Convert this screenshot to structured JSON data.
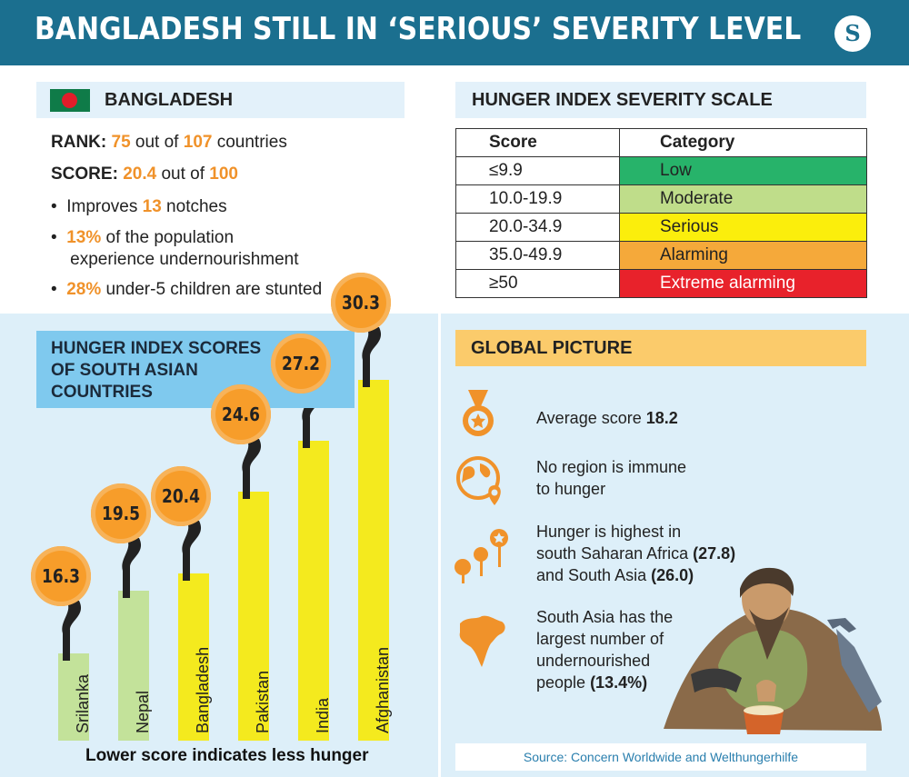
{
  "header": {
    "title": "BANGLADESH STILL IN ‘SERIOUS’ SEVERITY LEVEL",
    "logo": "S"
  },
  "bangladesh": {
    "name": "BANGLADESH",
    "rank_label": "RANK:",
    "rank": "75",
    "rank_mid": " out of ",
    "rank_total": "107",
    "rank_tail": " countries",
    "score_label": "SCORE:",
    "score": "20.4",
    "score_mid": " out of ",
    "score_total": "100",
    "b1_pre": "Improves ",
    "b1_val": "13",
    "b1_post": " notches",
    "b2_val": "13%",
    "b2_post": " of the population",
    "b2_line2": "experience undernourishment",
    "b3_val": "28%",
    "b3_post": " under-5 children are stunted"
  },
  "severity": {
    "title": "HUNGER INDEX SEVERITY SCALE",
    "col_score": "Score",
    "col_category": "Category",
    "rows": [
      {
        "score": "≤9.9",
        "category": "Low",
        "color": "#27b36a",
        "text_color": "#222"
      },
      {
        "score": "10.0-19.9",
        "category": "Moderate",
        "color": "#bfdd8a",
        "text_color": "#222"
      },
      {
        "score": "20.0-34.9",
        "category": "Serious",
        "color": "#fbee0c",
        "text_color": "#222"
      },
      {
        "score": "35.0-49.9",
        "category": "Alarming",
        "color": "#f5a93a",
        "text_color": "#222"
      },
      {
        "score": "≥50",
        "category": "Extreme alarming",
        "color": "#e8222b",
        "text_color": "#ffffff"
      }
    ]
  },
  "south_asia": {
    "title_line1": "HUNGER INDEX SCORES",
    "title_line2": "OF SOUTH ASIAN",
    "title_line3": "COUNTRIES",
    "footnote": "Lower score indicates less hunger"
  },
  "chart_data": {
    "type": "bar",
    "categories": [
      "Srilanka",
      "Nepal",
      "Bangladesh",
      "Pakistan",
      "India",
      "Afghanistan"
    ],
    "values": [
      16.3,
      19.5,
      20.4,
      24.6,
      27.2,
      30.3
    ],
    "labels": [
      "16.3",
      "19.5",
      "20.4",
      "24.6",
      "27.2",
      "30.3"
    ],
    "bar_colors": [
      "#c3e29a",
      "#c3e29a",
      "#f4ea1e",
      "#f4ea1e",
      "#f4ea1e",
      "#f4ea1e"
    ],
    "title": "HUNGER INDEX SCORES OF SOUTH ASIAN COUNTRIES",
    "xlabel": "",
    "ylabel": ""
  },
  "global": {
    "title": "GLOBAL PICTURE",
    "i1_pre": "Average score ",
    "i1_val": "18.2",
    "i2_l1": "No region is immune",
    "i2_l2": "to hunger",
    "i3_l1": "Hunger is highest in",
    "i3_l2": "south Saharan Africa ",
    "i3_v1": "(27.8)",
    "i3_l3": "and South Asia ",
    "i3_v2": "(26.0)",
    "i4_l1": "South Asia has the",
    "i4_l2": "largest number of",
    "i4_l3": "undernourished",
    "i4_l4": "people ",
    "i4_v": "(13.4%)",
    "icon_color": "#f0922a"
  },
  "source": "Source: Concern Worldwide and Welthungerhilfe"
}
